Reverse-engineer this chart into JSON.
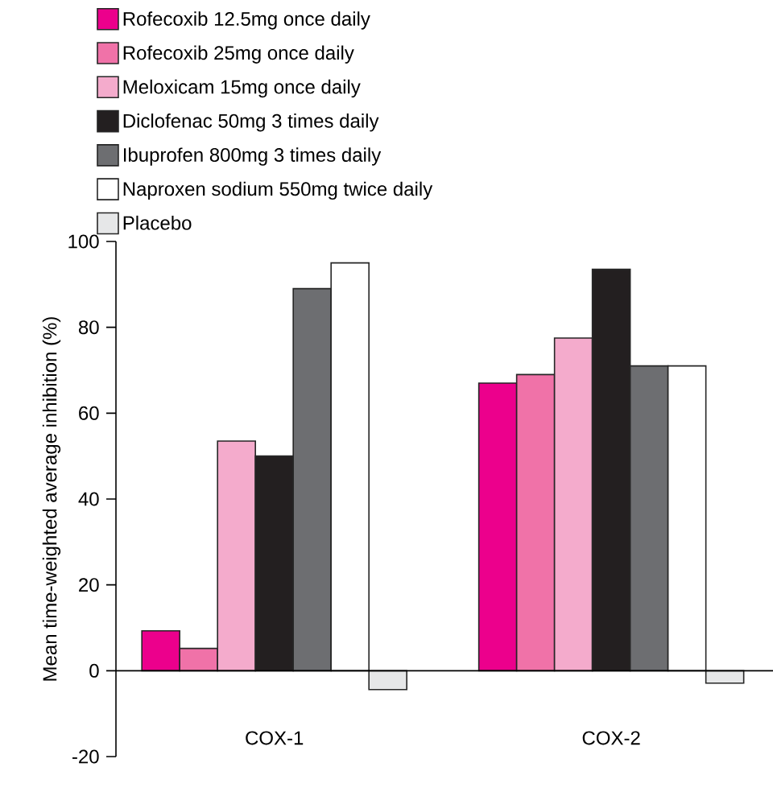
{
  "chart_data": {
    "type": "bar",
    "ylabel": "Mean time-weighted average inhibition (%)",
    "categories": [
      "COX-1",
      "COX-2"
    ],
    "series": [
      {
        "name": "Rofecoxib 12.5mg once daily",
        "color": "#ec008c",
        "values": [
          9.3,
          67
        ]
      },
      {
        "name": "Rofecoxib 25mg once daily",
        "color": "#f072a8",
        "values": [
          5.2,
          69
        ]
      },
      {
        "name": "Meloxicam 15mg once daily",
        "color": "#f4abcc",
        "values": [
          53.5,
          77.5
        ]
      },
      {
        "name": "Diclofenac 50mg 3 times daily",
        "color": "#231f20",
        "values": [
          50,
          93.5
        ]
      },
      {
        "name": "Ibuprofen 800mg 3 times daily",
        "color": "#6d6e71",
        "values": [
          89,
          71
        ]
      },
      {
        "name": "Naproxen sodium 550mg twice daily",
        "color": "#ffffff",
        "values": [
          95,
          71
        ]
      },
      {
        "name": "Placebo",
        "color": "#e6e7e8",
        "values": [
          -4.4,
          -2.9
        ]
      }
    ],
    "ylim": [
      -20,
      100
    ],
    "yticks": [
      -20,
      0,
      20,
      40,
      60,
      80,
      100
    ],
    "legend": "top"
  }
}
